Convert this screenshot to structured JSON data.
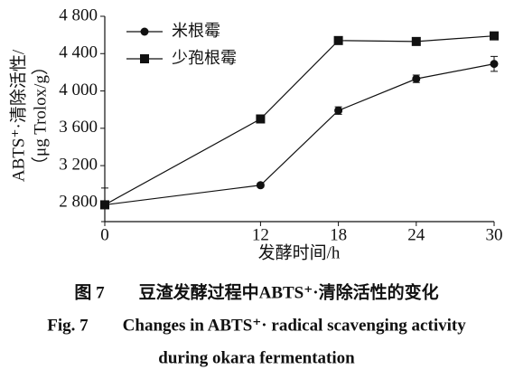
{
  "chart_data": {
    "type": "line",
    "y_label": [
      "ABTS⁺·清除活性/",
      "（μg Trolox/g）"
    ],
    "x_label": "发酵时间/h",
    "caption": [
      "图 7　　豆渣发酵过程中ABTS⁺·清除活性的变化",
      "Fig. 7　　Changes in ABTS⁺· radical scavenging activity",
      "during okara fermentation"
    ],
    "x": [
      0,
      12,
      18,
      24,
      30
    ],
    "series": [
      {
        "name": "米根霉",
        "color": "#111111",
        "marker": "circle",
        "values": [
          2780,
          2990,
          3790,
          4130,
          4290
        ],
        "errors": [
          180,
          20,
          40,
          40,
          80
        ]
      },
      {
        "name": "少孢根霉",
        "color": "#111111",
        "marker": "square",
        "values": [
          2780,
          3700,
          4540,
          4530,
          4590
        ],
        "errors": [
          20,
          20,
          30,
          40,
          20
        ]
      }
    ],
    "xlim": [
      0,
      30
    ],
    "xticks": [
      0,
      12,
      18,
      24,
      30
    ],
    "ylim": [
      2600,
      4800
    ],
    "yticks": [
      {
        "value": 2800,
        "label": "2 800"
      },
      {
        "value": 3200,
        "label": "3 200"
      },
      {
        "value": 3600,
        "label": "3 600"
      },
      {
        "value": 4000,
        "label": "4 000"
      },
      {
        "value": 4400,
        "label": "4 400"
      },
      {
        "value": 4800,
        "label": "4 800"
      }
    ],
    "legend": "upper left"
  }
}
